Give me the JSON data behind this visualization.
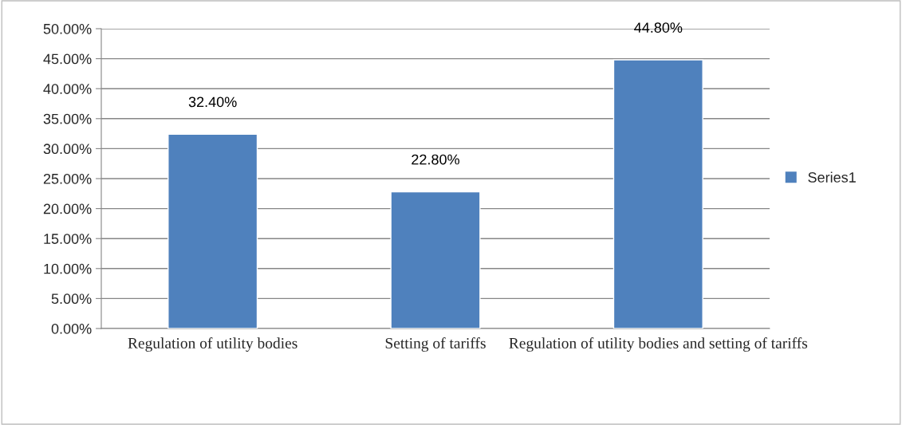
{
  "chart_data": {
    "type": "bar",
    "categories": [
      "Regulation of utility bodies",
      "Setting of tariffs",
      "Regulation of utility bodies and setting of tariffs"
    ],
    "series": [
      {
        "name": "Series1",
        "color": "#4f81bd",
        "values": [
          32.4,
          22.8,
          44.8
        ],
        "value_labels": [
          "32.40%",
          "22.80%",
          "44.80%"
        ]
      }
    ],
    "ylim": [
      0,
      50
    ],
    "yticks": [
      {
        "value": 0,
        "label": "0.00%"
      },
      {
        "value": 5,
        "label": "5.00%"
      },
      {
        "value": 10,
        "label": "10.00%"
      },
      {
        "value": 15,
        "label": "15.00%"
      },
      {
        "value": 20,
        "label": "20.00%"
      },
      {
        "value": 25,
        "label": "25.00%"
      },
      {
        "value": 30,
        "label": "30.00%"
      },
      {
        "value": 35,
        "label": "35.00%"
      },
      {
        "value": 40,
        "label": "40.00%"
      },
      {
        "value": 45,
        "label": "45.00%"
      },
      {
        "value": 50,
        "label": "50.00%"
      }
    ],
    "grid": "y",
    "legend": "right"
  }
}
